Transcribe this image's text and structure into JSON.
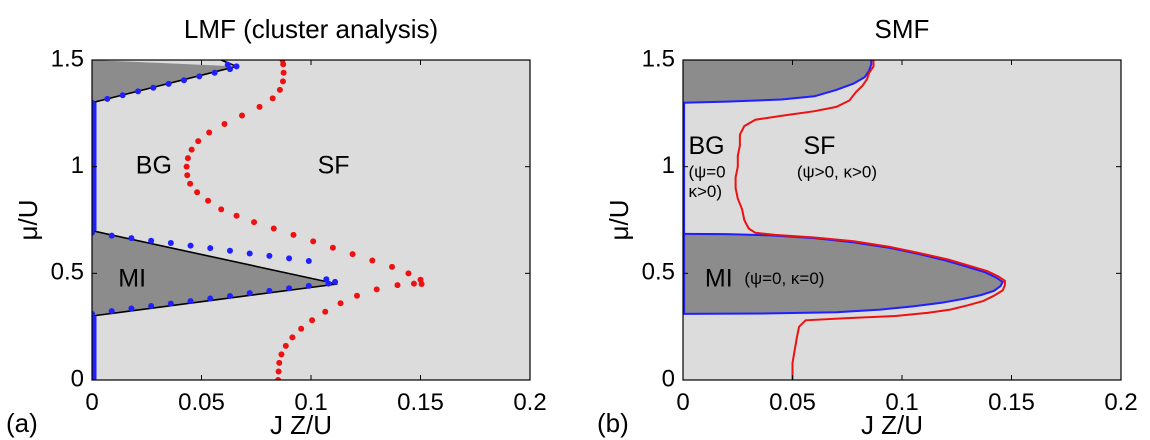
{
  "colors": {
    "light_gray": "#dcdcdc",
    "dark_gray": "#8c8c8c",
    "blue": "#1f1fff",
    "red": "#ee1111",
    "black": "#000000"
  },
  "chart_data": [
    {
      "type": "scatter",
      "panel_tag": "(a)",
      "title": "LMF (cluster analysis)",
      "xlabel": "J Z/U",
      "ylabel": "μ/U",
      "xlim": [
        0,
        0.2
      ],
      "ylim": [
        0,
        1.5
      ],
      "xticks": [
        0,
        0.05,
        0.1,
        0.15,
        0.2
      ],
      "xtick_labels": [
        "0",
        "0.05",
        "0.1",
        "0.15",
        "0.2"
      ],
      "yticks": [
        0,
        0.5,
        1,
        1.5
      ],
      "ytick_labels": [
        "0",
        "0.5",
        "1",
        "1.5"
      ],
      "grid": false,
      "background_region": "SF",
      "region_labels": [
        {
          "text": "BG",
          "x": 0.02,
          "y": 1.0
        },
        {
          "text": "SF",
          "x": 0.103,
          "y": 1.0
        },
        {
          "text": "MI",
          "x": 0.012,
          "y": 0.47
        }
      ],
      "regions": [
        {
          "name": "MI lobe n=0-1",
          "points": [
            [
              0,
              0.3
            ],
            [
              0.112,
              0.45
            ],
            [
              0,
              0.7
            ]
          ]
        },
        {
          "name": "MI lobe n=1-2",
          "points": [
            [
              0,
              1.3
            ],
            [
              0.066,
              1.47
            ],
            [
              0,
              1.5
            ]
          ]
        }
      ],
      "boundary_lines": [
        {
          "points": [
            [
              0,
              0.3
            ],
            [
              0.112,
              0.45
            ],
            [
              0,
              0.7
            ]
          ]
        },
        {
          "points": [
            [
              0,
              1.3
            ],
            [
              0.066,
              1.47
            ],
            [
              0.059,
              1.5
            ]
          ]
        }
      ],
      "blue_axis_segments": [
        [
          0,
          0.3
        ],
        [
          0.7,
          1.3
        ]
      ],
      "blue_points": [
        [
          0.0,
          0.31
        ],
        [
          0.009,
          0.323
        ],
        [
          0.018,
          0.335
        ],
        [
          0.027,
          0.347
        ],
        [
          0.036,
          0.358
        ],
        [
          0.045,
          0.37
        ],
        [
          0.054,
          0.382
        ],
        [
          0.063,
          0.394
        ],
        [
          0.072,
          0.407
        ],
        [
          0.081,
          0.418
        ],
        [
          0.09,
          0.43
        ],
        [
          0.099,
          0.441
        ],
        [
          0.108,
          0.452
        ],
        [
          0.111,
          0.46
        ],
        [
          0.0,
          0.69
        ],
        [
          0.009,
          0.677
        ],
        [
          0.018,
          0.665
        ],
        [
          0.027,
          0.653
        ],
        [
          0.036,
          0.642
        ],
        [
          0.045,
          0.63
        ],
        [
          0.054,
          0.618
        ],
        [
          0.063,
          0.606
        ],
        [
          0.072,
          0.593
        ],
        [
          0.081,
          0.582
        ],
        [
          0.09,
          0.57
        ],
        [
          0.099,
          0.558
        ],
        [
          0.107,
          0.472
        ],
        [
          0.0,
          1.3
        ],
        [
          0.007,
          1.318
        ],
        [
          0.014,
          1.335
        ],
        [
          0.021,
          1.353
        ],
        [
          0.028,
          1.37
        ],
        [
          0.035,
          1.388
        ],
        [
          0.042,
          1.405
        ],
        [
          0.049,
          1.423
        ],
        [
          0.056,
          1.44
        ],
        [
          0.063,
          1.457
        ],
        [
          0.066,
          1.47
        ],
        [
          0.062,
          1.478
        ]
      ],
      "red_points": [
        [
          0.085,
          0.0
        ],
        [
          0.0852,
          0.04
        ],
        [
          0.0855,
          0.08
        ],
        [
          0.0865,
          0.12
        ],
        [
          0.0885,
          0.16
        ],
        [
          0.0915,
          0.2
        ],
        [
          0.0955,
          0.24
        ],
        [
          0.1005,
          0.28
        ],
        [
          0.1065,
          0.32
        ],
        [
          0.1135,
          0.36
        ],
        [
          0.121,
          0.395
        ],
        [
          0.13,
          0.425
        ],
        [
          0.1395,
          0.445
        ],
        [
          0.147,
          0.452
        ],
        [
          0.1505,
          0.45
        ],
        [
          0.15,
          0.47
        ],
        [
          0.1445,
          0.5
        ],
        [
          0.137,
          0.53
        ],
        [
          0.128,
          0.56
        ],
        [
          0.119,
          0.59
        ],
        [
          0.11,
          0.62
        ],
        [
          0.101,
          0.65
        ],
        [
          0.092,
          0.68
        ],
        [
          0.083,
          0.71
        ],
        [
          0.074,
          0.74
        ],
        [
          0.066,
          0.77
        ],
        [
          0.059,
          0.8
        ],
        [
          0.053,
          0.84
        ],
        [
          0.048,
          0.88
        ],
        [
          0.0448,
          0.92
        ],
        [
          0.0435,
          0.96
        ],
        [
          0.0432,
          1.0
        ],
        [
          0.0438,
          1.04
        ],
        [
          0.0455,
          1.08
        ],
        [
          0.0485,
          1.12
        ],
        [
          0.0535,
          1.16
        ],
        [
          0.0605,
          1.2
        ],
        [
          0.0685,
          1.24
        ],
        [
          0.0765,
          1.28
        ],
        [
          0.0825,
          1.32
        ],
        [
          0.0858,
          1.36
        ],
        [
          0.0872,
          1.4
        ],
        [
          0.0875,
          1.44
        ],
        [
          0.0873,
          1.48
        ],
        [
          0.087,
          1.5
        ]
      ]
    },
    {
      "type": "line",
      "panel_tag": "(b)",
      "title": "SMF",
      "xlabel": "J Z/U",
      "ylabel": "μ/U",
      "xlim": [
        0,
        0.2
      ],
      "ylim": [
        0,
        1.5
      ],
      "xticks": [
        0,
        0.05,
        0.1,
        0.15,
        0.2
      ],
      "xtick_labels": [
        "0",
        "0.05",
        "0.1",
        "0.15",
        "0.2"
      ],
      "yticks": [
        0,
        0.5,
        1,
        1.5
      ],
      "ytick_labels": [
        "0",
        "0.5",
        "1",
        "1.5"
      ],
      "grid": false,
      "background_region": "SF",
      "region_labels": [
        {
          "text": "BG",
          "x": 0.0025,
          "y": 1.09,
          "size": "large"
        },
        {
          "text": "(ψ=0",
          "x": 0.0025,
          "y": 0.97,
          "size": "small"
        },
        {
          "text": "κ>0)",
          "x": 0.0025,
          "y": 0.88,
          "size": "small"
        },
        {
          "text": "SF",
          "x": 0.055,
          "y": 1.09,
          "size": "large"
        },
        {
          "text": "(ψ>0, κ>0)",
          "x": 0.052,
          "y": 0.97,
          "size": "small"
        },
        {
          "text": "MI",
          "x": 0.01,
          "y": 0.47,
          "size": "large"
        },
        {
          "text": "(ψ=0, κ=0)",
          "x": 0.028,
          "y": 0.47,
          "size": "small"
        }
      ],
      "regions": [
        {
          "name": "MI lobe n=0-1",
          "points": [
            [
              0,
              0.31
            ],
            [
              0.04,
              0.312
            ],
            [
              0.07,
              0.318
            ],
            [
              0.09,
              0.33
            ],
            [
              0.105,
              0.345
            ],
            [
              0.118,
              0.362
            ],
            [
              0.128,
              0.38
            ],
            [
              0.136,
              0.398
            ],
            [
              0.142,
              0.418
            ],
            [
              0.145,
              0.44
            ],
            [
              0.146,
              0.46
            ],
            [
              0.143,
              0.48
            ],
            [
              0.138,
              0.505
            ],
            [
              0.13,
              0.53
            ],
            [
              0.12,
              0.56
            ],
            [
              0.108,
              0.59
            ],
            [
              0.094,
              0.62
            ],
            [
              0.078,
              0.645
            ],
            [
              0.06,
              0.665
            ],
            [
              0.04,
              0.678
            ],
            [
              0.02,
              0.684
            ],
            [
              0,
              0.685
            ]
          ]
        },
        {
          "name": "MI lobe n=1-2",
          "points": [
            [
              0,
              1.3
            ],
            [
              0.02,
              1.305
            ],
            [
              0.045,
              1.315
            ],
            [
              0.06,
              1.33
            ],
            [
              0.07,
              1.36
            ],
            [
              0.078,
              1.39
            ],
            [
              0.083,
              1.42
            ],
            [
              0.085,
              1.45
            ],
            [
              0.086,
              1.48
            ],
            [
              0.086,
              1.5
            ],
            [
              0,
              1.5
            ]
          ]
        }
      ],
      "blue_lines": [
        {
          "points": [
            [
              0.0005,
              0.31
            ],
            [
              0.0005,
              0.685
            ]
          ]
        },
        {
          "points": [
            [
              0.0005,
              0.685
            ],
            [
              0.0005,
              1.3
            ]
          ]
        },
        {
          "points": [
            [
              0,
              0.31
            ],
            [
              0.04,
              0.312
            ],
            [
              0.07,
              0.318
            ],
            [
              0.09,
              0.33
            ],
            [
              0.105,
              0.345
            ],
            [
              0.118,
              0.362
            ],
            [
              0.128,
              0.38
            ],
            [
              0.136,
              0.398
            ],
            [
              0.142,
              0.418
            ],
            [
              0.145,
              0.44
            ],
            [
              0.146,
              0.46
            ],
            [
              0.143,
              0.48
            ],
            [
              0.138,
              0.505
            ],
            [
              0.13,
              0.53
            ],
            [
              0.12,
              0.56
            ],
            [
              0.108,
              0.59
            ],
            [
              0.094,
              0.62
            ],
            [
              0.078,
              0.645
            ],
            [
              0.06,
              0.665
            ],
            [
              0.04,
              0.678
            ],
            [
              0.02,
              0.684
            ],
            [
              0,
              0.685
            ]
          ]
        },
        {
          "points": [
            [
              0,
              1.3
            ],
            [
              0.02,
              1.305
            ],
            [
              0.045,
              1.315
            ],
            [
              0.06,
              1.33
            ],
            [
              0.07,
              1.36
            ],
            [
              0.078,
              1.39
            ],
            [
              0.083,
              1.42
            ],
            [
              0.085,
              1.45
            ],
            [
              0.086,
              1.48
            ],
            [
              0.086,
              1.5
            ]
          ]
        }
      ],
      "red_line": [
        [
          0.05,
          0.0
        ],
        [
          0.05,
          0.08
        ],
        [
          0.051,
          0.14
        ],
        [
          0.052,
          0.2
        ],
        [
          0.053,
          0.25
        ],
        [
          0.056,
          0.28
        ],
        [
          0.075,
          0.29
        ],
        [
          0.097,
          0.3
        ],
        [
          0.112,
          0.315
        ],
        [
          0.122,
          0.33
        ],
        [
          0.13,
          0.35
        ],
        [
          0.137,
          0.37
        ],
        [
          0.142,
          0.395
        ],
        [
          0.146,
          0.42
        ],
        [
          0.147,
          0.445
        ],
        [
          0.147,
          0.465
        ],
        [
          0.144,
          0.485
        ],
        [
          0.139,
          0.51
        ],
        [
          0.131,
          0.535
        ],
        [
          0.121,
          0.565
        ],
        [
          0.108,
          0.595
        ],
        [
          0.094,
          0.625
        ],
        [
          0.078,
          0.65
        ],
        [
          0.06,
          0.668
        ],
        [
          0.042,
          0.68
        ],
        [
          0.033,
          0.69
        ],
        [
          0.03,
          0.71
        ],
        [
          0.028,
          0.75
        ],
        [
          0.027,
          0.8
        ],
        [
          0.025,
          0.85
        ],
        [
          0.024,
          0.9
        ],
        [
          0.024,
          0.95
        ],
        [
          0.025,
          1.0
        ],
        [
          0.025,
          1.05
        ],
        [
          0.026,
          1.1
        ],
        [
          0.026,
          1.15
        ],
        [
          0.028,
          1.19
        ],
        [
          0.033,
          1.22
        ],
        [
          0.046,
          1.24
        ],
        [
          0.06,
          1.26
        ],
        [
          0.07,
          1.28
        ],
        [
          0.076,
          1.31
        ],
        [
          0.079,
          1.35
        ],
        [
          0.082,
          1.38
        ],
        [
          0.084,
          1.41
        ],
        [
          0.085,
          1.44
        ],
        [
          0.087,
          1.47
        ],
        [
          0.087,
          1.5
        ]
      ]
    }
  ]
}
